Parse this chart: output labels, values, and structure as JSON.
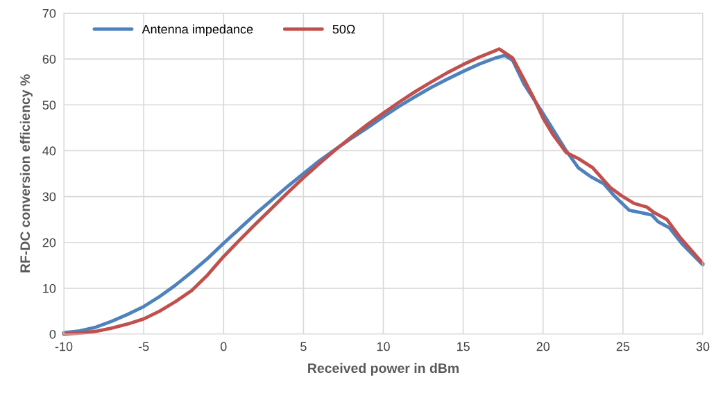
{
  "chart_data": {
    "type": "line",
    "xlabel": "Received power in dBm",
    "ylabel": "RF-DC conversion efficiency %",
    "xlim": [
      -10,
      30
    ],
    "xticks": [
      -10,
      -5,
      0,
      5,
      10,
      15,
      20,
      25,
      30
    ],
    "ylim": [
      0,
      70
    ],
    "yticks": [
      0,
      10,
      20,
      30,
      40,
      50,
      60,
      70
    ],
    "grid": true,
    "legend": "top left",
    "marker": "none",
    "line_style": "solid",
    "series": [
      {
        "name": "Antenna impedance",
        "color": "#4f81bd",
        "x": [
          -10,
          -9,
          -8,
          -7,
          -6,
          -5,
          -4,
          -3,
          -2,
          -1,
          0,
          1,
          2,
          3,
          4,
          5,
          6,
          7,
          8,
          9,
          10,
          11,
          12,
          13,
          14,
          15,
          16,
          17,
          17.6,
          18.1,
          18.8,
          20,
          21.45,
          22.2,
          23.0,
          23.8,
          24.5,
          25.4,
          26.1,
          26.8,
          27.2,
          27.9,
          28.7,
          30
        ],
        "values": [
          0.3,
          0.7,
          1.5,
          2.8,
          4.3,
          6.0,
          8.2,
          10.7,
          13.5,
          16.5,
          19.8,
          23.0,
          26.2,
          29.2,
          32.2,
          35.0,
          37.8,
          40.3,
          42.7,
          45.0,
          47.4,
          49.7,
          51.8,
          53.8,
          55.6,
          57.3,
          58.9,
          60.2,
          60.8,
          59.7,
          54.6,
          48.1,
          40.0,
          36.3,
          34.3,
          32.8,
          30.0,
          27.0,
          26.5,
          26.0,
          24.5,
          23.2,
          19.7,
          15.1
        ]
      },
      {
        "name": "50Ω",
        "color": "#c0504d",
        "x": [
          -10,
          -9,
          -8,
          -7,
          -6,
          -5,
          -4,
          -3,
          -2,
          -1,
          0,
          1,
          2,
          3,
          4,
          5,
          6,
          7,
          8,
          9,
          10,
          11,
          12,
          13,
          14,
          15,
          16,
          17,
          17.25,
          18.1,
          18.8,
          19.4,
          20,
          20.6,
          21.45,
          22.2,
          23.1,
          24.2,
          24.9,
          25.7,
          26.5,
          26.95,
          27.75,
          28.55,
          29.3,
          30
        ],
        "values": [
          0,
          0.2,
          0.6,
          1.3,
          2.2,
          3.3,
          5.0,
          7.1,
          9.5,
          12.9,
          16.9,
          20.5,
          24.0,
          27.4,
          30.8,
          34.1,
          37.2,
          40.2,
          43.0,
          45.7,
          48.2,
          50.6,
          52.9,
          55.0,
          57.0,
          58.8,
          60.4,
          61.8,
          62.2,
          60.2,
          55.6,
          51.6,
          47.1,
          43.6,
          39.6,
          38.3,
          36.3,
          32.0,
          30.2,
          28.5,
          27.7,
          26.5,
          25.0,
          21.2,
          18.2,
          15.4
        ]
      }
    ]
  }
}
